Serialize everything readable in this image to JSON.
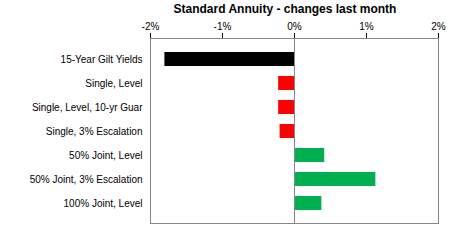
{
  "chart_data": {
    "type": "bar",
    "title": "Standard Annuity - changes last month",
    "orientation": "horizontal",
    "categories": [
      "15-Year Gilt Yields",
      "Single, Level",
      "Single, Level, 10-yr Guar",
      "Single, 3% Escalation",
      "50% Joint, Level",
      "50% Joint, 3% Escalation",
      "100% Joint, Level"
    ],
    "values": [
      -1.8,
      -0.22,
      -0.22,
      -0.2,
      0.42,
      1.13,
      0.38
    ],
    "colors": [
      "#000000",
      "#ff0000",
      "#ff0000",
      "#ff0000",
      "#00b050",
      "#00b050",
      "#00b050"
    ],
    "xlim": [
      -2,
      2
    ],
    "xticks": [
      {
        "value": -2,
        "label": "-2%"
      },
      {
        "value": -1,
        "label": "-1%"
      },
      {
        "value": 0,
        "label": "0%"
      },
      {
        "value": 1,
        "label": "1%"
      },
      {
        "value": 2,
        "label": "2%"
      }
    ],
    "grid": false,
    "data_labels": false
  }
}
